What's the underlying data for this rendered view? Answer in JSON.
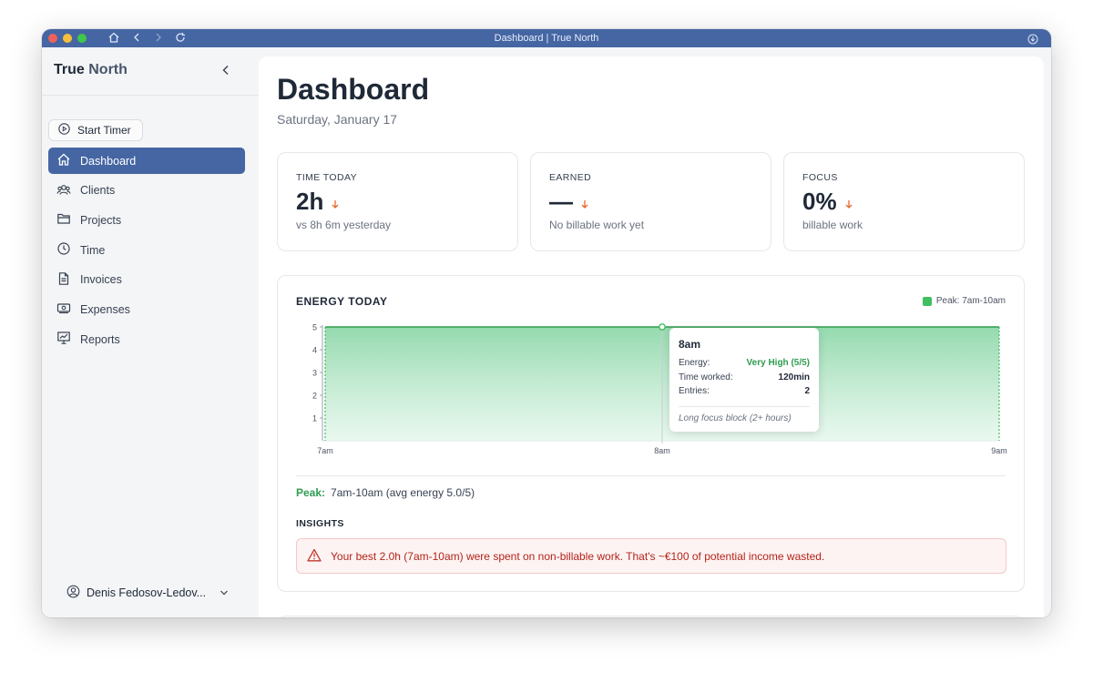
{
  "window": {
    "title": "Dashboard | True North"
  },
  "sidebar": {
    "brand_first": "True",
    "brand_second": "North",
    "start_timer": "Start Timer",
    "items": [
      {
        "label": "Dashboard",
        "icon": "home-icon"
      },
      {
        "label": "Clients",
        "icon": "users-icon"
      },
      {
        "label": "Projects",
        "icon": "folder-icon"
      },
      {
        "label": "Time",
        "icon": "clock-icon"
      },
      {
        "label": "Invoices",
        "icon": "file-icon"
      },
      {
        "label": "Expenses",
        "icon": "wallet-icon"
      },
      {
        "label": "Reports",
        "icon": "chart-icon"
      }
    ],
    "user_name": "Denis Fedosov-Ledov..."
  },
  "main": {
    "title": "Dashboard",
    "date": "Saturday, January 17",
    "cards": [
      {
        "label": "TIME TODAY",
        "value": "2h",
        "sub": "vs 8h 6m yesterday"
      },
      {
        "label": "EARNED",
        "value": "—",
        "sub": "No billable work yet"
      },
      {
        "label": "FOCUS",
        "value": "0%",
        "sub": "billable work"
      }
    ],
    "energy": {
      "title": "ENERGY TODAY",
      "legend": "Peak: 7am-10am",
      "tooltip": {
        "heading": "8am",
        "rows": [
          {
            "k": "Energy:",
            "v": "Very High (5/5)"
          },
          {
            "k": "Time worked:",
            "v": "120min"
          },
          {
            "k": "Entries:",
            "v": "2"
          }
        ],
        "note": "Long focus block (2+ hours)"
      },
      "peak_label": "Peak:",
      "peak_text": "7am-10am (avg energy 5.0/5)",
      "insights_title": "INSIGHTS",
      "insight_text": "Your best 2.0h (7am-10am) were spent on non-billable work. That's ~€100 of potential income wasted."
    }
  },
  "colors": {
    "accent": "#4566a3",
    "green": "#3fbf5f",
    "danger": "#b42318",
    "down_arrow": "#e8692c"
  },
  "chart_data": {
    "type": "area",
    "title": "ENERGY TODAY",
    "categories": [
      "7am",
      "8am",
      "9am"
    ],
    "values": [
      5,
      5,
      5
    ],
    "ylim": [
      0,
      5
    ],
    "yticks": [
      1,
      2,
      3,
      4,
      5
    ],
    "legend": "Peak: 7am-10am"
  }
}
